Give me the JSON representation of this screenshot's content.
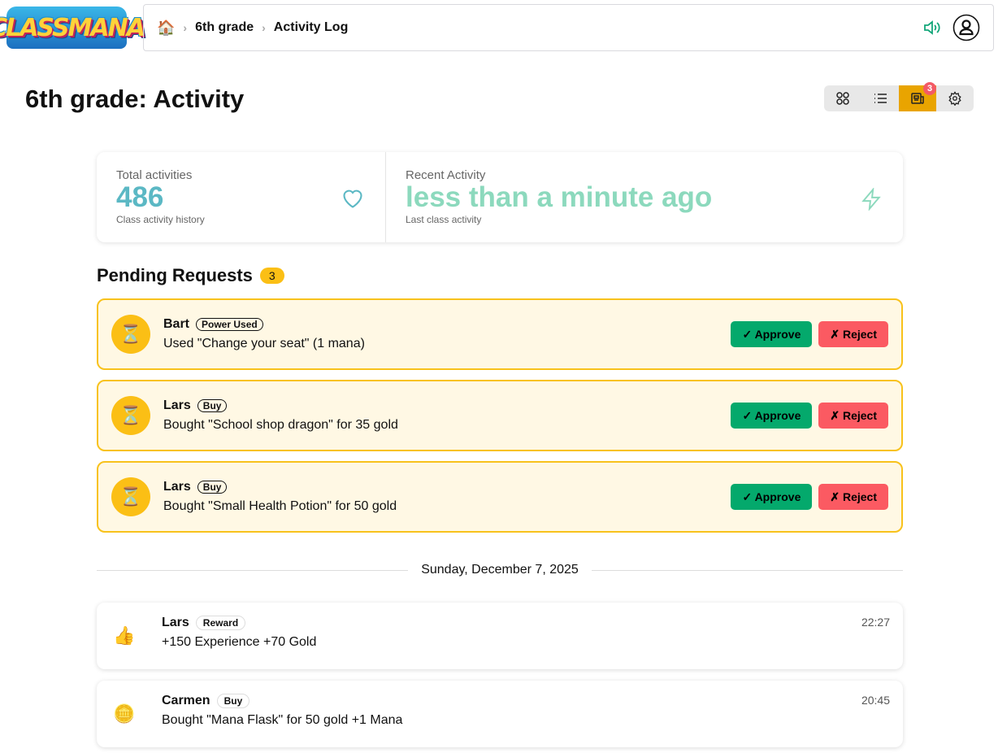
{
  "app": {
    "logo_text": "CLASSMANA"
  },
  "breadcrumb": {
    "home_icon": "house-emoji",
    "items": [
      "6th grade",
      "Activity Log"
    ]
  },
  "header": {
    "title": "6th grade: Activity",
    "views": [
      "grid-icon",
      "list-icon",
      "newspaper-icon",
      "gear-icon"
    ],
    "active_view": "newspaper-icon",
    "notification_count": "3"
  },
  "stats": [
    {
      "label": "Total activities",
      "value": "486",
      "sub": "Class activity history",
      "icon": "heart-icon",
      "color": "#5bb8c4"
    },
    {
      "label": "Recent Activity",
      "value": "less than a minute ago",
      "sub": "Last class activity",
      "icon": "lightning-icon",
      "color": "#8cd9bd"
    }
  ],
  "pending": {
    "title": "Pending Requests",
    "count": "3",
    "approve_label": "✓ Approve",
    "reject_label": "✗ Reject",
    "items": [
      {
        "name": "Bart",
        "tag": "Power Used",
        "desc": "Used \"Change your seat\" (1 mana)"
      },
      {
        "name": "Lars",
        "tag": "Buy",
        "desc": "Bought \"School shop dragon\" for 35 gold"
      },
      {
        "name": "Lars",
        "tag": "Buy",
        "desc": "Bought \"Small Health Potion\" for 50 gold"
      }
    ]
  },
  "date_divider": "Sunday, December 7, 2025",
  "activities": [
    {
      "icon": "👍",
      "name": "Lars",
      "tag": "Reward",
      "desc": "+150 Experience +70 Gold",
      "time": "22:27"
    },
    {
      "icon": "🪙",
      "name": "Carmen",
      "tag": "Buy",
      "desc": "Bought \"Mana Flask\" for 50 gold +1 Mana",
      "time": "20:45"
    }
  ],
  "colors": {
    "accent": "#e9a400",
    "approve": "#04a96c",
    "reject": "#fb5a62",
    "pending_bg": "#fff8e4"
  }
}
